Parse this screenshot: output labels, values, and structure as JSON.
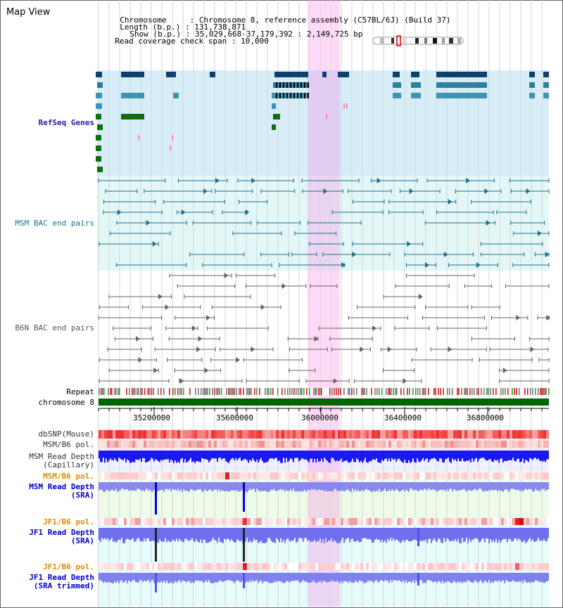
{
  "view_title": "Map View",
  "info": {
    "chromosome_label": "Chromosome",
    "chromosome_value": "Chromosome 8, reference assembly (C57BL/6J) (Build 37)",
    "length_label": "Length (b.p.)",
    "length_value": "131,738,871",
    "show_label": "Show (b.p.)",
    "show_value": "35,029,668-37,179,392 : 2,149,725 bp",
    "coverage_label": "Read coverage check span",
    "coverage_value": "10,000"
  },
  "tracks": {
    "refseq": "RefSeq Genes",
    "msm_bac": "MSM BAC end pairs",
    "b6n_bac": "B6N BAC end pairs",
    "repeat": "Repeat",
    "chromosome": "chromosome 8",
    "dbsnp": "dbSNP(Mouse)",
    "msm_b6_pol_1": "MSM/B6 pol.",
    "msm_depth_cap_1": "MSM Read Depth",
    "msm_depth_cap_2": "(Capillary)",
    "msm_b6_pol_2": "MSM/B6 pol.",
    "msm_depth_sra_1": "MSM Read Depth",
    "msm_depth_sra_2": "(SRA)",
    "jf1_b6_pol_1": "JF1/B6 pol.",
    "jf1_depth_sra_1": "JF1 Read Depth",
    "jf1_depth_sra_2": "(SRA)",
    "jf1_b6_pol_2": "JF1/B6 pol.",
    "jf1_depth_trim_1": "JF1 Read Depth",
    "jf1_depth_trim_2": "(SRA trimmed)"
  },
  "axis_ticks": [
    "35200000",
    "35600000",
    "36000000",
    "36400000",
    "36800000"
  ],
  "colors": {
    "refseq_label": "#1f1fa0",
    "msm_label": "#1f6f8f",
    "b6n_label": "#555555",
    "orange_label": "#e08a00",
    "blue_label": "#0000cc",
    "highlight": "#ffb4f0",
    "chromosome_bar": "#006600"
  }
}
